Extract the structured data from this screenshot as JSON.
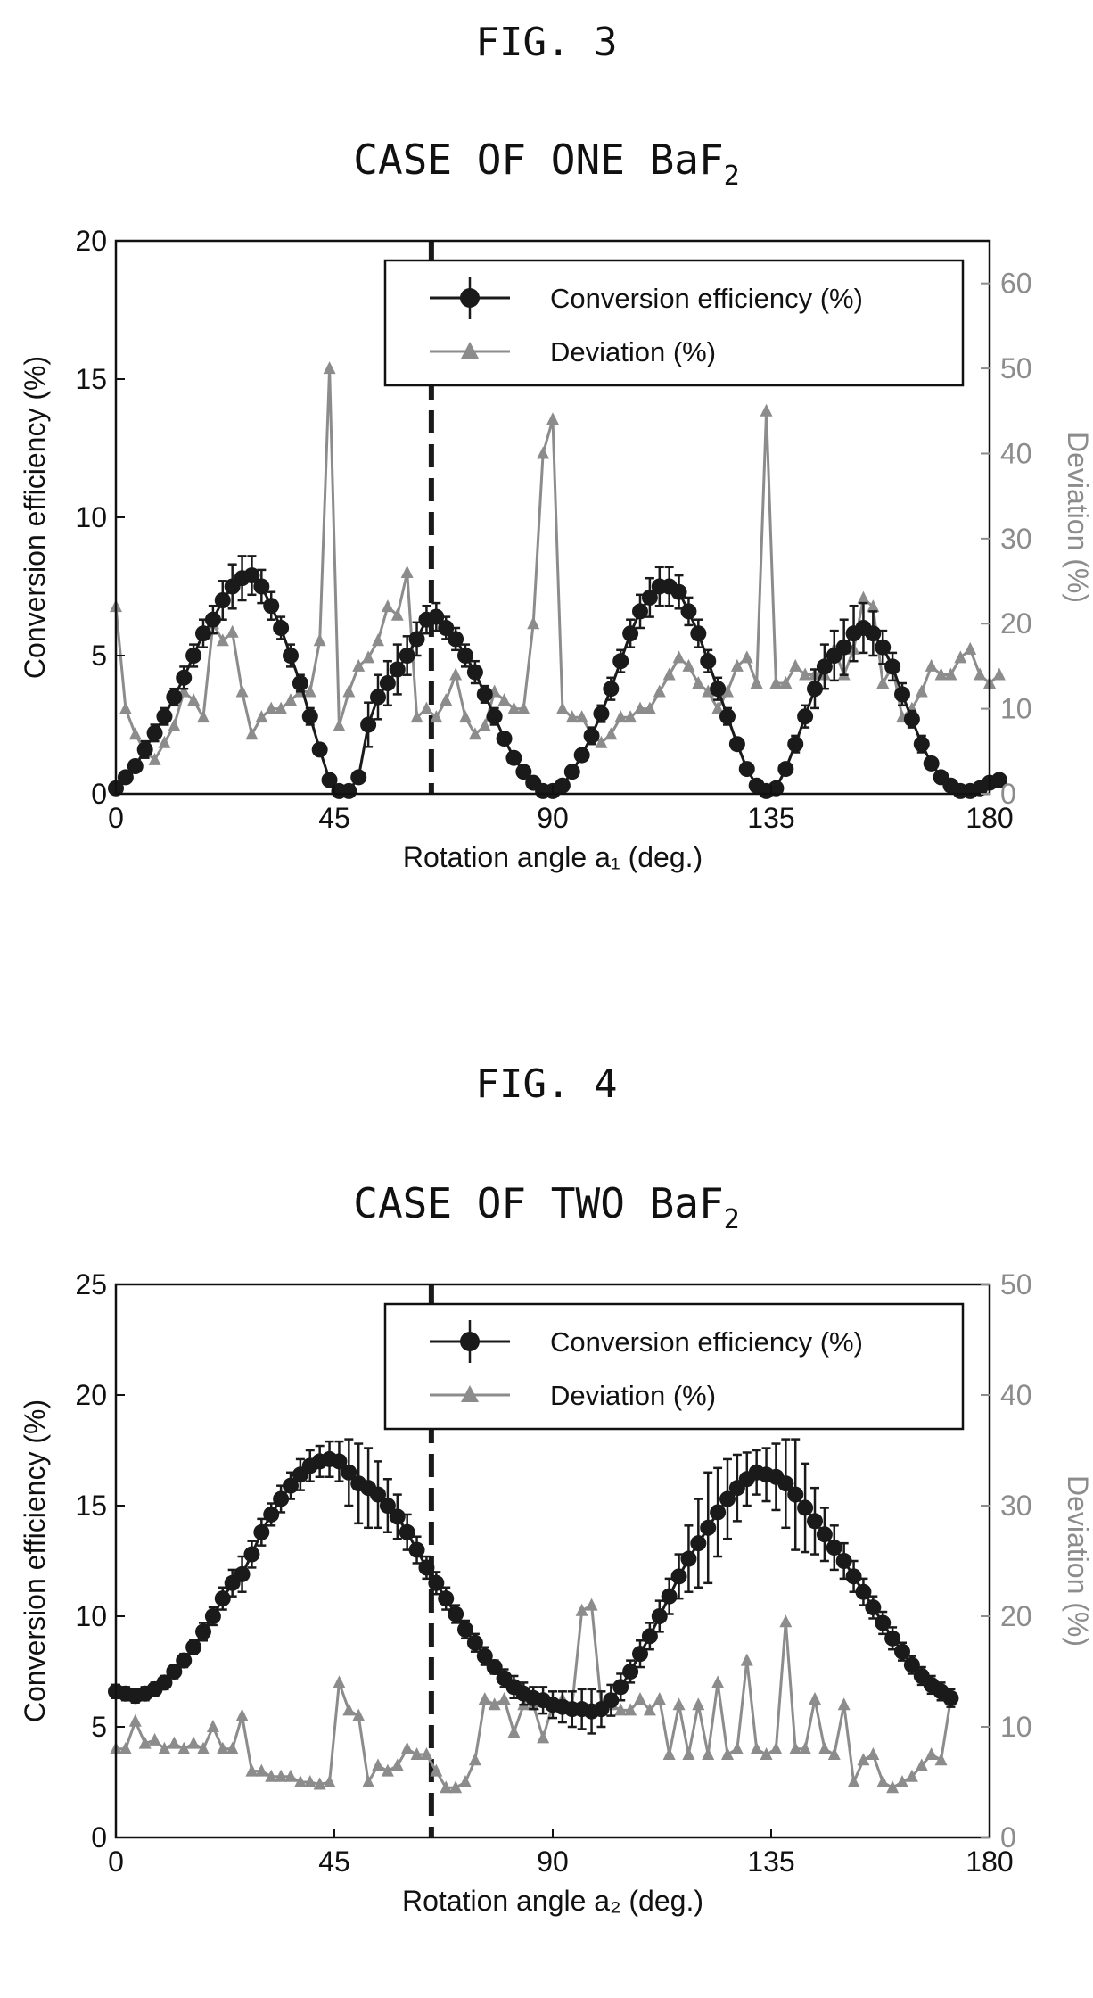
{
  "figures": [
    {
      "label": "FIG. 3"
    },
    {
      "label": "FIG. 4"
    }
  ],
  "colors": {
    "efficiency": "#1a1a1a",
    "deviation": "#8c8c8c",
    "frame": "#111111"
  },
  "chart_data": [
    {
      "type": "line",
      "title": "CASE OF ONE BaF",
      "title_subscript": "2",
      "xlabel": "Rotation angle a₁ (deg.)",
      "ylabel": "Conversion efficiency (%)",
      "y2label": "Deviation (%)",
      "xlim": [
        0,
        180
      ],
      "ylim": [
        0,
        20
      ],
      "y2lim": [
        0,
        65
      ],
      "xticks": [
        "0",
        "45",
        "90",
        "135",
        "180"
      ],
      "yticks": [
        "0",
        "5",
        "10",
        "15",
        "20"
      ],
      "y2ticks": [
        "0",
        "10",
        "20",
        "30",
        "40",
        "50",
        "60"
      ],
      "marker_line_x": 65,
      "legend": {
        "position": "top-right",
        "entries": [
          "Conversion efficiency (%)",
          "Deviation (%)"
        ]
      },
      "series": [
        {
          "name": "Conversion efficiency (%)",
          "axis": "left",
          "marker": "circle",
          "x": [
            0,
            2,
            4,
            6,
            8,
            10,
            12,
            14,
            16,
            18,
            20,
            22,
            24,
            26,
            28,
            30,
            32,
            34,
            36,
            38,
            40,
            42,
            44,
            46,
            48,
            50,
            52,
            54,
            56,
            58,
            60,
            62,
            64,
            66,
            68,
            70,
            72,
            74,
            76,
            78,
            80,
            82,
            84,
            86,
            88,
            90,
            92,
            94,
            96,
            98,
            100,
            102,
            104,
            106,
            108,
            110,
            112,
            114,
            116,
            118,
            120,
            122,
            124,
            126,
            128,
            130,
            132,
            134,
            136,
            138,
            140,
            142,
            144,
            146,
            148,
            150,
            152,
            154,
            156,
            158,
            160,
            162,
            164,
            166,
            168,
            170,
            172,
            174,
            176,
            178,
            180,
            182
          ],
          "y": [
            0.2,
            0.6,
            1.0,
            1.6,
            2.2,
            2.8,
            3.5,
            4.2,
            5.0,
            5.8,
            6.3,
            7.0,
            7.5,
            7.8,
            7.9,
            7.5,
            6.8,
            6.0,
            5.0,
            4.0,
            2.8,
            1.6,
            0.5,
            0.1,
            0.1,
            0.6,
            2.5,
            3.5,
            4.0,
            4.5,
            5.0,
            5.6,
            6.3,
            6.4,
            6.0,
            5.6,
            5.0,
            4.4,
            3.6,
            2.8,
            2.0,
            1.3,
            0.8,
            0.4,
            0.1,
            0.1,
            0.3,
            0.8,
            1.4,
            2.1,
            2.9,
            3.8,
            4.8,
            5.8,
            6.6,
            7.1,
            7.5,
            7.5,
            7.3,
            6.6,
            5.8,
            4.8,
            3.8,
            2.8,
            1.8,
            0.9,
            0.3,
            0.1,
            0.2,
            0.9,
            1.8,
            2.8,
            3.8,
            4.6,
            5.0,
            5.3,
            5.8,
            6.0,
            5.8,
            5.3,
            4.6,
            3.6,
            2.7,
            1.8,
            1.1,
            0.6,
            0.3,
            0.1,
            0.1,
            0.2,
            0.4,
            0.5
          ],
          "error": [
            0.2,
            0.2,
            0.2,
            0.3,
            0.3,
            0.3,
            0.3,
            0.4,
            0.4,
            0.5,
            0.5,
            0.7,
            0.8,
            0.8,
            0.7,
            0.6,
            0.5,
            0.4,
            0.4,
            0.3,
            0.3,
            0.2,
            0.1,
            0.1,
            0.1,
            0.2,
            0.8,
            0.8,
            0.8,
            0.9,
            0.7,
            0.6,
            0.5,
            0.5,
            0.4,
            0.4,
            0.4,
            0.4,
            0.3,
            0.3,
            0.2,
            0.2,
            0.1,
            0.1,
            0.1,
            0.1,
            0.1,
            0.2,
            0.2,
            0.3,
            0.3,
            0.4,
            0.4,
            0.5,
            0.6,
            0.7,
            0.7,
            0.7,
            0.6,
            0.5,
            0.5,
            0.4,
            0.4,
            0.3,
            0.2,
            0.2,
            0.1,
            0.1,
            0.1,
            0.2,
            0.3,
            0.4,
            0.7,
            0.8,
            0.9,
            1.0,
            1.0,
            0.9,
            0.8,
            0.6,
            0.5,
            0.4,
            0.3,
            0.3,
            0.2,
            0.2,
            0.1,
            0.1,
            0.1,
            0.1,
            0.1,
            0.1
          ]
        },
        {
          "name": "Deviation (%)",
          "axis": "right",
          "marker": "triangle",
          "x": [
            0,
            2,
            4,
            6,
            8,
            10,
            12,
            14,
            16,
            18,
            20,
            22,
            24,
            26,
            28,
            30,
            32,
            34,
            36,
            38,
            40,
            42,
            44,
            46,
            48,
            50,
            52,
            54,
            56,
            58,
            60,
            62,
            64,
            66,
            68,
            70,
            72,
            74,
            76,
            78,
            80,
            82,
            84,
            86,
            88,
            90,
            92,
            94,
            96,
            98,
            100,
            102,
            104,
            106,
            108,
            110,
            112,
            114,
            116,
            118,
            120,
            122,
            124,
            126,
            128,
            130,
            132,
            134,
            136,
            138,
            140,
            142,
            144,
            146,
            148,
            150,
            152,
            154,
            156,
            158,
            160,
            162,
            164,
            166,
            168,
            170,
            172,
            174,
            176,
            178,
            180,
            182
          ],
          "y": [
            22,
            10,
            7,
            5,
            4,
            6,
            8,
            12,
            11,
            9,
            20,
            18,
            19,
            12,
            7,
            9,
            10,
            10,
            11,
            12,
            12,
            18,
            50,
            8,
            12,
            15,
            16,
            18,
            22,
            21,
            26,
            9,
            10,
            9,
            11,
            14,
            9,
            7,
            8,
            12,
            11,
            10,
            10,
            20,
            40,
            44,
            10,
            9,
            9,
            7,
            6,
            7,
            9,
            9,
            10,
            10,
            12,
            14,
            16,
            15,
            13,
            12,
            10,
            12,
            15,
            16,
            13,
            45,
            13,
            13,
            15,
            14,
            14,
            14,
            17,
            14,
            17,
            23,
            22,
            13,
            15,
            9,
            10,
            12,
            15,
            14,
            14,
            16,
            17,
            14,
            13,
            14
          ],
          "y_fix": null
        }
      ]
    },
    {
      "type": "line",
      "title": "CASE OF TWO BaF",
      "title_subscript": "2",
      "xlabel": "Rotation angle a₂ (deg.)",
      "ylabel": "Conversion efficiency (%)",
      "y2label": "Deviation (%)",
      "xlim": [
        0,
        180
      ],
      "ylim": [
        0,
        25
      ],
      "y2lim": [
        0,
        50
      ],
      "xticks": [
        "0",
        "45",
        "90",
        "135",
        "180"
      ],
      "yticks": [
        "0",
        "5",
        "10",
        "15",
        "20",
        "25"
      ],
      "y2ticks": [
        "0",
        "10",
        "20",
        "30",
        "40",
        "50"
      ],
      "marker_line_x": 65,
      "legend": {
        "position": "top-right",
        "entries": [
          "Conversion efficiency (%)",
          "Deviation (%)"
        ]
      },
      "series": [
        {
          "name": "Conversion efficiency (%)",
          "axis": "left",
          "marker": "circle",
          "x": [
            0,
            2,
            4,
            6,
            8,
            10,
            12,
            14,
            16,
            18,
            20,
            22,
            24,
            26,
            28,
            30,
            32,
            34,
            36,
            38,
            40,
            42,
            44,
            46,
            48,
            50,
            52,
            54,
            56,
            58,
            60,
            62,
            64,
            66,
            68,
            70,
            72,
            74,
            76,
            78,
            80,
            82,
            84,
            86,
            88,
            90,
            92,
            94,
            96,
            98,
            100,
            102,
            104,
            106,
            108,
            110,
            112,
            114,
            116,
            118,
            120,
            122,
            124,
            126,
            128,
            130,
            132,
            134,
            136,
            138,
            140,
            142,
            144,
            146,
            148,
            150,
            152,
            154,
            156,
            158,
            160,
            162,
            164,
            166,
            168,
            170,
            172
          ],
          "y": [
            6.6,
            6.5,
            6.4,
            6.5,
            6.7,
            7.0,
            7.5,
            8.0,
            8.6,
            9.3,
            10.0,
            10.8,
            11.5,
            11.9,
            12.8,
            13.8,
            14.6,
            15.3,
            15.9,
            16.4,
            16.8,
            17.0,
            17.1,
            17.0,
            16.5,
            16.0,
            15.8,
            15.5,
            15.0,
            14.5,
            13.8,
            13.0,
            12.2,
            11.5,
            10.8,
            10.1,
            9.4,
            8.8,
            8.2,
            7.7,
            7.2,
            6.8,
            6.5,
            6.3,
            6.2,
            6.0,
            5.9,
            5.8,
            5.8,
            5.7,
            5.8,
            6.2,
            6.8,
            7.5,
            8.3,
            9.1,
            10.0,
            10.9,
            11.8,
            12.6,
            13.3,
            14.0,
            14.7,
            15.3,
            15.8,
            16.2,
            16.5,
            16.4,
            16.3,
            16.0,
            15.5,
            14.9,
            14.3,
            13.7,
            13.1,
            12.5,
            11.8,
            11.1,
            10.4,
            9.7,
            9.0,
            8.4,
            7.8,
            7.3,
            6.9,
            6.6,
            6.3
          ],
          "error": [
            0.3,
            0.3,
            0.3,
            0.3,
            0.3,
            0.3,
            0.3,
            0.3,
            0.3,
            0.4,
            0.4,
            0.5,
            0.6,
            0.8,
            0.6,
            0.6,
            0.5,
            0.6,
            0.6,
            0.7,
            0.7,
            0.7,
            0.8,
            0.9,
            1.5,
            1.8,
            1.8,
            1.5,
            1.2,
            1.0,
            0.8,
            0.6,
            0.5,
            0.5,
            0.5,
            0.4,
            0.4,
            0.4,
            0.4,
            0.3,
            0.4,
            0.5,
            0.5,
            0.5,
            0.6,
            0.6,
            0.7,
            0.8,
            0.9,
            1.0,
            0.8,
            0.7,
            0.6,
            0.5,
            0.6,
            0.6,
            0.7,
            0.8,
            1.0,
            1.5,
            2.0,
            2.5,
            2.0,
            1.8,
            1.5,
            1.2,
            1.0,
            1.2,
            1.5,
            2.0,
            2.5,
            2.0,
            1.5,
            1.2,
            1.0,
            0.8,
            0.7,
            0.6,
            0.5,
            0.5,
            0.5,
            0.4,
            0.4,
            0.4,
            0.4,
            0.4,
            0.4
          ]
        },
        {
          "name": "Deviation (%)",
          "axis": "right",
          "marker": "triangle",
          "x": [
            0,
            2,
            4,
            6,
            8,
            10,
            12,
            14,
            16,
            18,
            20,
            22,
            24,
            26,
            28,
            30,
            32,
            34,
            36,
            38,
            40,
            42,
            44,
            46,
            48,
            50,
            52,
            54,
            56,
            58,
            60,
            62,
            64,
            66,
            68,
            70,
            72,
            74,
            76,
            78,
            80,
            82,
            84,
            86,
            88,
            90,
            92,
            94,
            96,
            98,
            100,
            102,
            104,
            106,
            108,
            110,
            112,
            114,
            116,
            118,
            120,
            122,
            124,
            126,
            128,
            130,
            132,
            134,
            136,
            138,
            140,
            142,
            144,
            146,
            148,
            150,
            152,
            154,
            156,
            158,
            160,
            162,
            164,
            166,
            168,
            170,
            172
          ],
          "y": [
            8,
            8,
            10.5,
            8.5,
            8.8,
            8,
            8.5,
            8,
            8.5,
            8,
            10,
            8,
            8,
            11,
            6,
            6,
            5.5,
            5.5,
            5.5,
            5,
            5,
            4.8,
            5,
            14,
            11.5,
            11,
            5,
            6.5,
            6,
            6.5,
            8,
            7.5,
            7.5,
            6,
            4.5,
            4.5,
            5,
            7,
            12.5,
            12,
            12.5,
            9.5,
            12,
            12,
            9,
            12,
            12.5,
            12,
            20.5,
            21,
            12,
            12,
            11.5,
            11.5,
            12.5,
            11.5,
            12.5,
            7.5,
            12,
            7.5,
            12,
            7.5,
            14,
            7.5,
            8,
            16,
            8,
            7.5,
            8,
            19.5,
            8,
            8,
            12.5,
            8,
            7.5,
            12,
            5,
            7,
            7.5,
            5,
            4.5,
            5,
            5.5,
            6.5,
            7.5,
            7,
            12.5
          ]
        }
      ]
    }
  ]
}
